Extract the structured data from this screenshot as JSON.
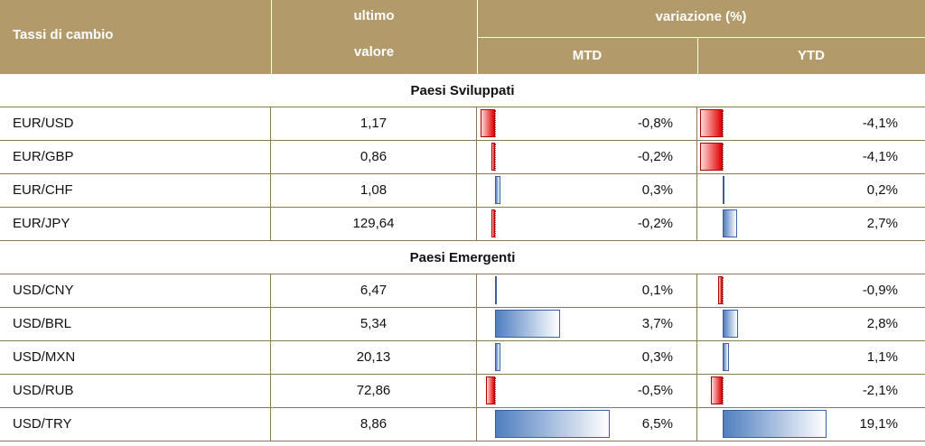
{
  "header": {
    "title": "Tassi di cambio",
    "col_last_line1": "ultimo",
    "col_last_line2": "valore",
    "col_change": "variazione (%)",
    "col_mtd": "MTD",
    "col_ytd": "YTD"
  },
  "colors": {
    "header_bg": "#b29a6a",
    "negative": "#e00000",
    "positive": "#4f7ec0",
    "grid": "#8a7a55"
  },
  "sections": [
    {
      "label": "Paesi Sviluppati",
      "rows": [
        {
          "name": "EUR/USD",
          "value": "1,17",
          "mtd": "-0,8%",
          "ytd": "-4,1%",
          "mtd_num": -0.8,
          "ytd_num": -4.1
        },
        {
          "name": "EUR/GBP",
          "value": "0,86",
          "mtd": "-0,2%",
          "ytd": "-4,1%",
          "mtd_num": -0.2,
          "ytd_num": -4.1
        },
        {
          "name": "EUR/CHF",
          "value": "1,08",
          "mtd": "0,3%",
          "ytd": "0,2%",
          "mtd_num": 0.3,
          "ytd_num": 0.2
        },
        {
          "name": "EUR/JPY",
          "value": "129,64",
          "mtd": "-0,2%",
          "ytd": "2,7%",
          "mtd_num": -0.2,
          "ytd_num": 2.7
        }
      ]
    },
    {
      "label": "Paesi Emergenti",
      "rows": [
        {
          "name": "USD/CNY",
          "value": "6,47",
          "mtd": "0,1%",
          "ytd": "-0,9%",
          "mtd_num": 0.1,
          "ytd_num": -0.9
        },
        {
          "name": "USD/BRL",
          "value": "5,34",
          "mtd": "3,7%",
          "ytd": "2,8%",
          "mtd_num": 3.7,
          "ytd_num": 2.8
        },
        {
          "name": "USD/MXN",
          "value": "20,13",
          "mtd": "0,3%",
          "ytd": "1,1%",
          "mtd_num": 0.3,
          "ytd_num": 1.1
        },
        {
          "name": "USD/RUB",
          "value": "72,86",
          "mtd": "-0,5%",
          "ytd": "-2,1%",
          "mtd_num": -0.5,
          "ytd_num": -2.1
        },
        {
          "name": "USD/TRY",
          "value": "8,86",
          "mtd": "6,5%",
          "ytd": "19,1%",
          "mtd_num": 6.5,
          "ytd_num": 19.1
        }
      ]
    }
  ]
}
